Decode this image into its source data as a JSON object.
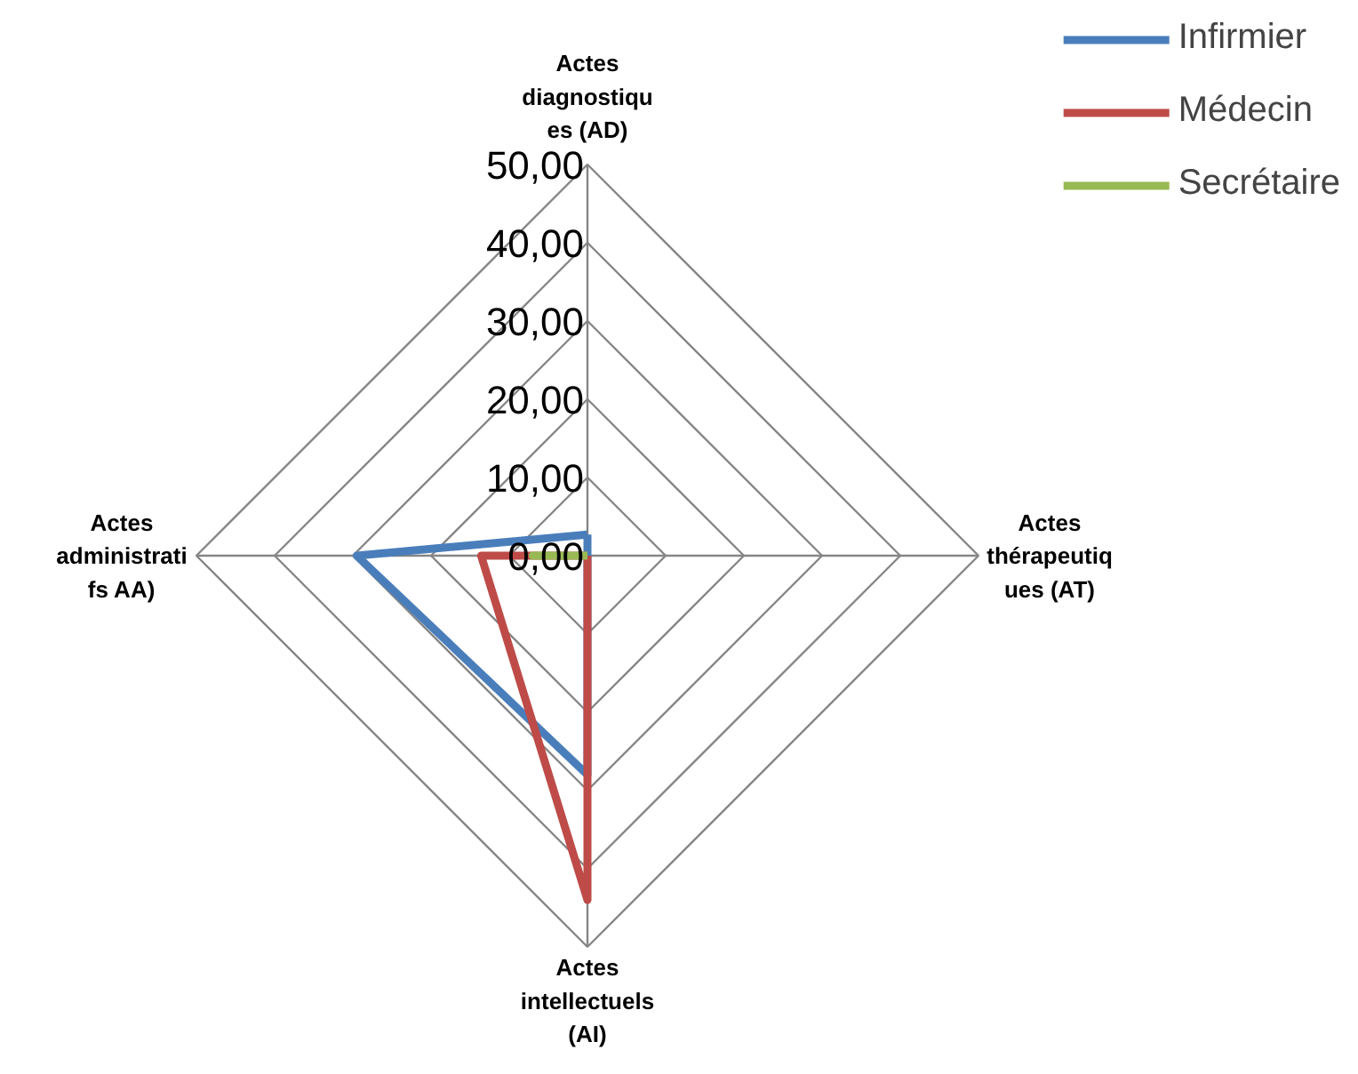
{
  "chart_data": {
    "type": "radar",
    "categories": [
      "Actes\ndiagnostiqu\nes (AD)",
      "Actes\nthérapeutiq\nues (AT)",
      "Actes\nintellectuels\n(AI)",
      "Actes\nadministrati\nfs AA)"
    ],
    "series": [
      {
        "name": "Infirmier",
        "color": "#4a7ebb",
        "values": [
          2.7,
          0,
          28,
          29.5
        ]
      },
      {
        "name": "Médecin",
        "color": "#be4b48",
        "values": [
          0,
          0,
          44,
          13.6
        ]
      },
      {
        "name": "Secrétaire",
        "color": "#98b954",
        "values": [
          0,
          0,
          0,
          7
        ]
      }
    ],
    "ylim": [
      0,
      50
    ],
    "yticks": [
      {
        "value": 0,
        "label": "0,00"
      },
      {
        "value": 10,
        "label": "10,00"
      },
      {
        "value": 20,
        "label": "20,00"
      },
      {
        "value": 30,
        "label": "30,00"
      },
      {
        "value": 40,
        "label": "40,00"
      },
      {
        "value": 50,
        "label": "50,00"
      }
    ],
    "grid": true,
    "legend": "top right"
  }
}
